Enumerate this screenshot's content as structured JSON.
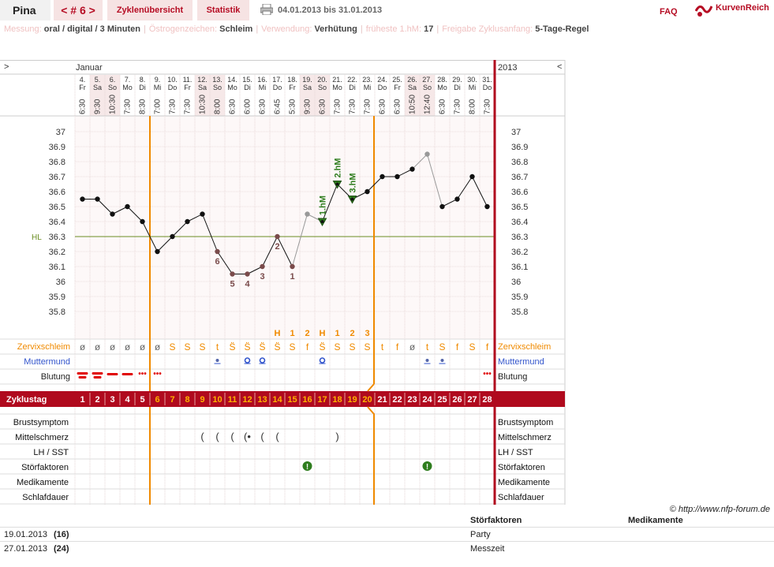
{
  "header": {
    "user": "Pina",
    "cycle_label": "< # 6 >",
    "tab_overview": "Zyklenübersicht",
    "tab_stats": "Statistik",
    "period": "04.01.2013 bis 31.01.2013",
    "faq": "FAQ",
    "logo": "KurvenReich"
  },
  "settings": [
    {
      "label": "Messung:",
      "value": "oral / digital / 3 Minuten"
    },
    {
      "label": "Östrogenzeichen:",
      "value": "Schleim"
    },
    {
      "label": "Verwendung:",
      "value": "Verhütung"
    },
    {
      "label": "früheste 1.hM:",
      "value": "17"
    },
    {
      "label": "Freigabe Zyklusanfang:",
      "value": "5-Tage-Regel"
    }
  ],
  "chart_data": {
    "type": "line",
    "month": "Januar",
    "year": "2013",
    "nav_left": ">",
    "nav_right": "<",
    "ylim": [
      35.7,
      37.05
    ],
    "y_ticks": [
      "37",
      "36.9",
      "36.8",
      "36.7",
      "36.6",
      "36.5",
      "36.4",
      "36.3",
      "36.2",
      "36.1",
      "36",
      "35.9",
      "35.8"
    ],
    "hl_label": "HL",
    "hl_value": 36.3,
    "dates": [
      "4.",
      "5.",
      "6.",
      "7.",
      "8.",
      "9.",
      "10.",
      "11.",
      "12.",
      "13.",
      "14.",
      "15.",
      "16.",
      "17.",
      "18.",
      "19.",
      "20.",
      "21.",
      "22.",
      "23.",
      "24.",
      "25.",
      "26.",
      "27.",
      "28.",
      "29.",
      "30.",
      "31."
    ],
    "weekdays": [
      "Fr",
      "Sa",
      "So",
      "Mo",
      "Di",
      "Mi",
      "Do",
      "Fr",
      "Sa",
      "So",
      "Mo",
      "Di",
      "Mi",
      "Do",
      "Fr",
      "Sa",
      "So",
      "Mo",
      "Di",
      "Mi",
      "Do",
      "Fr",
      "Sa",
      "So",
      "Mo",
      "Di",
      "Mi",
      "Do"
    ],
    "times": [
      "6:30",
      "9:30",
      "10:30",
      "7:30",
      "8:30",
      "7:00",
      "7:30",
      "7:30",
      "10:30",
      "8:00",
      "6:30",
      "6:00",
      "6:30",
      "6:45",
      "5:30",
      "9:30",
      "6:30",
      "7:30",
      "7:30",
      "7:30",
      "6:30",
      "6:30",
      "10:50",
      "12:40",
      "6:30",
      "7:30",
      "8:00",
      "7:30"
    ],
    "temps": [
      36.55,
      36.55,
      36.45,
      36.5,
      36.4,
      36.2,
      36.3,
      36.4,
      36.45,
      36.2,
      36.05,
      36.05,
      36.1,
      36.3,
      36.1,
      36.45,
      36.4,
      36.65,
      36.55,
      36.6,
      36.7,
      36.7,
      36.75,
      36.85,
      36.5,
      36.55,
      36.7,
      36.5
    ],
    "point_style": [
      "n",
      "n",
      "n",
      "n",
      "n",
      "n",
      "n",
      "n",
      "n",
      "c",
      "c",
      "c",
      "c",
      "c",
      "c",
      "g",
      "v",
      "v",
      "v",
      "n",
      "n",
      "n",
      "n",
      "g",
      "n",
      "n",
      "n",
      "n"
    ],
    "point_labels": [
      "",
      "",
      "",
      "",
      "",
      "",
      "",
      "",
      "",
      "6",
      "5",
      "4",
      "3",
      "2",
      "1",
      "",
      "",
      "",
      "",
      "",
      "",
      "",
      "",
      "",
      "",
      "",
      "",
      ""
    ],
    "hm_labels": [
      "",
      "",
      "",
      "",
      "",
      "",
      "",
      "",
      "",
      "",
      "",
      "",
      "",
      "",
      "",
      "",
      "1.hM",
      "2.hM",
      "3.hM",
      "",
      "",
      "",
      "",
      "",
      "",
      "",
      "",
      ""
    ],
    "peak_labels": [
      "",
      "",
      "",
      "",
      "",
      "",
      "",
      "",
      "",
      "",
      "",
      "",
      "",
      "H",
      "1",
      "2",
      "H",
      "1",
      "2",
      "3",
      "",
      "",
      "",
      "",
      "",
      "",
      "",
      ""
    ],
    "mucus": [
      "ø",
      "ø",
      "ø",
      "ø",
      "ø",
      "ø",
      "S",
      "S",
      "S",
      "t",
      "S̈",
      "S̈",
      "S̈",
      "S̈",
      "S",
      "f",
      "S̈",
      "S",
      "S",
      "S",
      "t",
      "f",
      "ø",
      "t",
      "S",
      "f",
      "S",
      "f"
    ],
    "cervix": [
      "",
      "",
      "",
      "",
      "",
      "",
      "",
      "",
      "",
      "•",
      "",
      "o",
      "o",
      "",
      "",
      "",
      "o",
      "",
      "",
      "",
      "",
      "",
      "",
      "•",
      "•",
      "",
      "",
      ""
    ],
    "bleeding": [
      "==",
      "==",
      "=",
      "=",
      "...",
      "...",
      "",
      "",
      "",
      "",
      "",
      "",
      "",
      "",
      "",
      "",
      "",
      "",
      "",
      "",
      "",
      "",
      "",
      "",
      "",
      "",
      "",
      "..."
    ],
    "cycle_days": [
      "1",
      "2",
      "3",
      "4",
      "5",
      "6",
      "7",
      "8",
      "9",
      "10",
      "11",
      "12",
      "13",
      "14",
      "15",
      "16",
      "17",
      "18",
      "19",
      "20",
      "21",
      "22",
      "23",
      "24",
      "25",
      "26",
      "27",
      "28"
    ],
    "pain": [
      "",
      "",
      "",
      "",
      "",
      "",
      "",
      "",
      "(",
      "(",
      "(",
      "(•",
      "(",
      "(",
      "",
      "",
      "",
      ")",
      "",
      "",
      "",
      "",
      "",
      "",
      "",
      "",
      "",
      ""
    ],
    "disturb": [
      "",
      "",
      "",
      "",
      "",
      "",
      "",
      "",
      "",
      "",
      "",
      "",
      "",
      "",
      "",
      "!",
      "",
      "",
      "",
      "",
      "",
      "",
      "",
      "!",
      "",
      "",
      "",
      ""
    ],
    "row_labels": {
      "mucus": "Zervixschleim",
      "cervix": "Muttermund",
      "bleeding": "Blutung",
      "cycle": "Zyklustag",
      "breast": "Brustsymptom",
      "pain": "Mittelschmerz",
      "lh": "LH / SST",
      "disturb": "Störfaktoren",
      "meds": "Medikamente",
      "sleep": "Schlafdauer"
    },
    "colors": {
      "accent": "#b00a1e",
      "orange": "#f08a00",
      "hl": "#6b8e23",
      "green": "#2f7d1e",
      "cervix_blue": "#3355cc",
      "bleed": "#e00000",
      "coverline_brown": "#7a4b4b"
    }
  },
  "footer": {
    "copyright": "© http://www.nfp-forum.de",
    "col_dist": "Störfaktoren",
    "col_meds": "Medikamente",
    "rows": [
      {
        "date": "19.01.2013",
        "day": "(16)",
        "dist": "Party"
      },
      {
        "date": "27.01.2013",
        "day": "(24)",
        "dist": "Messzeit"
      }
    ]
  }
}
